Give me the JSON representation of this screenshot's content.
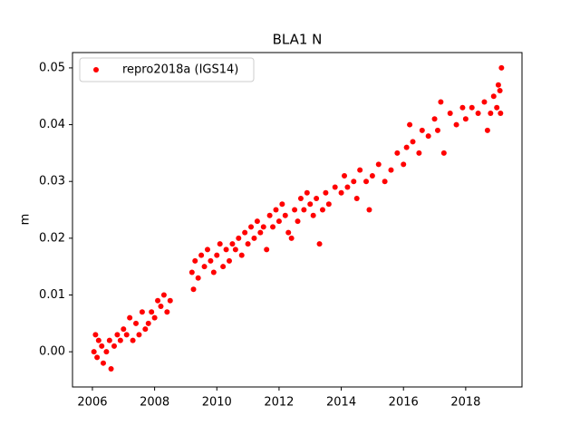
{
  "chart_data": {
    "type": "scatter",
    "title": "BLA1 N",
    "y_label": "m",
    "legend_position": "upper left",
    "xlim": [
      2005.36,
      2019.81
    ],
    "ylim": [
      -0.0062,
      0.0527
    ],
    "xticks": [
      2006,
      2008,
      2010,
      2012,
      2014,
      2016,
      2018
    ],
    "yticks": [
      {
        "value": 0,
        "label": "0.00"
      },
      {
        "value": 0.01,
        "label": "0.01"
      },
      {
        "value": 0.02,
        "label": "0.02"
      },
      {
        "value": 0.03,
        "label": "0.03"
      },
      {
        "value": 0.04,
        "label": "0.04"
      },
      {
        "value": 0.05,
        "label": "0.05"
      }
    ],
    "grid": false,
    "series": [
      {
        "name": "repro2018a (IGS14)",
        "color": "#ff0000",
        "x": [
          2006.05,
          2006.1,
          2006.15,
          2006.2,
          2006.3,
          2006.35,
          2006.45,
          2006.55,
          2006.6,
          2006.7,
          2006.8,
          2006.9,
          2007.0,
          2007.1,
          2007.2,
          2007.3,
          2007.4,
          2007.5,
          2007.6,
          2007.7,
          2007.8,
          2007.9,
          2008.0,
          2008.1,
          2008.2,
          2008.3,
          2008.4,
          2008.5,
          2009.2,
          2009.25,
          2009.3,
          2009.4,
          2009.5,
          2009.6,
          2009.7,
          2009.8,
          2009.9,
          2010.0,
          2010.1,
          2010.2,
          2010.3,
          2010.4,
          2010.5,
          2010.6,
          2010.7,
          2010.8,
          2010.9,
          2011.0,
          2011.1,
          2011.2,
          2011.3,
          2011.4,
          2011.5,
          2011.6,
          2011.7,
          2011.8,
          2011.9,
          2012.0,
          2012.1,
          2012.2,
          2012.3,
          2012.4,
          2012.5,
          2012.6,
          2012.7,
          2012.8,
          2012.9,
          2013.0,
          2013.1,
          2013.2,
          2013.3,
          2013.4,
          2013.5,
          2013.6,
          2013.8,
          2014.0,
          2014.1,
          2014.2,
          2014.4,
          2014.5,
          2014.6,
          2014.8,
          2014.9,
          2015.0,
          2015.2,
          2015.4,
          2015.6,
          2015.8,
          2016.0,
          2016.1,
          2016.2,
          2016.3,
          2016.5,
          2016.6,
          2016.8,
          2017.0,
          2017.1,
          2017.2,
          2017.3,
          2017.5,
          2017.7,
          2017.9,
          2018.0,
          2018.2,
          2018.4,
          2018.6,
          2018.7,
          2018.8,
          2018.9,
          2019.0,
          2019.05,
          2019.1,
          2019.15,
          2019.12
        ],
        "values": [
          0.0,
          0.003,
          -0.001,
          0.002,
          0.001,
          -0.002,
          0.0,
          0.002,
          -0.003,
          0.001,
          0.003,
          0.002,
          0.004,
          0.003,
          0.006,
          0.002,
          0.005,
          0.003,
          0.007,
          0.004,
          0.005,
          0.007,
          0.006,
          0.009,
          0.008,
          0.01,
          0.007,
          0.009,
          0.014,
          0.011,
          0.016,
          0.013,
          0.017,
          0.015,
          0.018,
          0.016,
          0.014,
          0.017,
          0.019,
          0.015,
          0.018,
          0.016,
          0.019,
          0.018,
          0.02,
          0.017,
          0.021,
          0.019,
          0.022,
          0.02,
          0.023,
          0.021,
          0.022,
          0.018,
          0.024,
          0.022,
          0.025,
          0.023,
          0.026,
          0.024,
          0.021,
          0.02,
          0.025,
          0.023,
          0.027,
          0.025,
          0.028,
          0.026,
          0.024,
          0.027,
          0.019,
          0.025,
          0.028,
          0.026,
          0.029,
          0.028,
          0.031,
          0.029,
          0.03,
          0.027,
          0.032,
          0.03,
          0.025,
          0.031,
          0.033,
          0.03,
          0.032,
          0.035,
          0.033,
          0.036,
          0.04,
          0.037,
          0.035,
          0.039,
          0.038,
          0.041,
          0.039,
          0.044,
          0.035,
          0.042,
          0.04,
          0.043,
          0.041,
          0.043,
          0.042,
          0.044,
          0.039,
          0.042,
          0.045,
          0.043,
          0.047,
          0.046,
          0.05,
          0.042
        ]
      }
    ]
  }
}
